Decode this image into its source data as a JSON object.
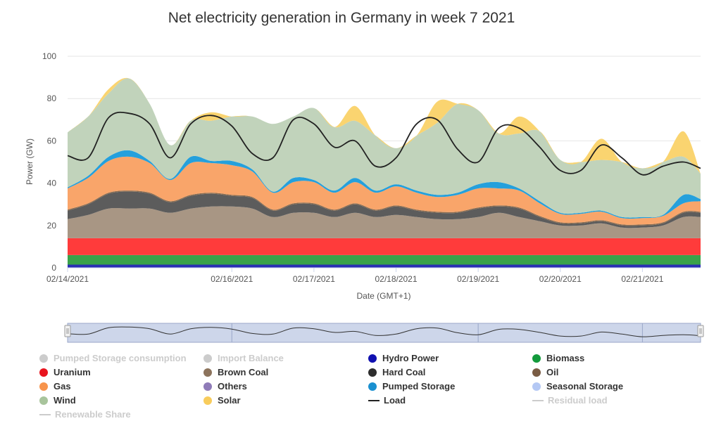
{
  "chart_data": {
    "type": "area",
    "title": "Net electricity generation in Germany in week 7 2021",
    "xlabel": "Date (GMT+1)",
    "ylabel": "Power (GW)",
    "ylim": [
      0,
      100
    ],
    "yticks": [
      0,
      20,
      40,
      60,
      80,
      100
    ],
    "xticks": [
      "02/14/2021",
      "02/16/2021",
      "02/17/2021",
      "02/18/2021",
      "02/19/2021",
      "02/20/2021",
      "02/21/2021"
    ],
    "xtick_hours": [
      0,
      48,
      72,
      96,
      120,
      144,
      168
    ],
    "xrange_hours": [
      0,
      185
    ],
    "x_hours": [
      0,
      6,
      12,
      18,
      24,
      30,
      36,
      42,
      48,
      54,
      60,
      66,
      72,
      78,
      84,
      90,
      96,
      102,
      108,
      114,
      120,
      126,
      132,
      138,
      144,
      150,
      156,
      162,
      168,
      174,
      180,
      185
    ],
    "stack_order": [
      "Hydro Power",
      "Biomass",
      "Uranium",
      "Brown Coal",
      "Hard Coal",
      "Oil",
      "Gas",
      "Pumped Storage",
      "Wind",
      "Solar"
    ],
    "series": [
      {
        "name": "Hydro Power",
        "color": "#2a2fb4",
        "values": [
          1.5,
          1.5,
          1.5,
          1.5,
          1.5,
          1.5,
          1.5,
          1.5,
          1.5,
          1.5,
          1.5,
          1.5,
          1.5,
          1.5,
          1.5,
          1.5,
          1.5,
          1.5,
          1.5,
          1.5,
          1.5,
          1.5,
          1.5,
          1.5,
          1.5,
          1.5,
          1.5,
          1.5,
          1.5,
          1.5,
          1.5,
          1.5
        ]
      },
      {
        "name": "Biomass",
        "color": "#3aa24a",
        "values": [
          4.5,
          4.5,
          4.5,
          4.5,
          4.5,
          4.5,
          4.5,
          4.5,
          4.5,
          4.5,
          4.5,
          4.5,
          4.5,
          4.5,
          4.5,
          4.5,
          4.5,
          4.5,
          4.5,
          4.5,
          4.5,
          4.5,
          4.5,
          4.5,
          4.5,
          4.5,
          4.5,
          4.5,
          4.5,
          4.5,
          4.5,
          4.5
        ]
      },
      {
        "name": "Uranium",
        "color": "#ff3b3b",
        "values": [
          8,
          8,
          8,
          8,
          8,
          8,
          8,
          8,
          8,
          8,
          8,
          8,
          8,
          8,
          8,
          8,
          8,
          8,
          8,
          8,
          8,
          8,
          8,
          8,
          8,
          8,
          8,
          8,
          8,
          8,
          8,
          8
        ]
      },
      {
        "name": "Brown Coal",
        "color": "#a89684",
        "values": [
          9,
          11,
          14,
          14,
          14,
          12,
          14,
          15,
          15,
          14,
          10,
          12,
          12,
          10,
          12,
          10,
          11,
          10,
          9,
          9,
          10,
          12,
          10,
          8,
          6,
          6,
          7,
          5,
          5,
          6,
          10,
          10
        ]
      },
      {
        "name": "Hard Coal",
        "color": "#5c5c5c",
        "values": [
          4,
          5,
          7,
          8,
          7,
          5,
          6,
          6,
          5,
          5,
          3,
          4,
          4,
          3,
          4,
          3,
          4,
          3,
          3,
          3,
          4,
          3,
          4,
          2,
          1,
          1,
          1,
          1,
          1,
          1,
          2,
          2
        ]
      },
      {
        "name": "Oil",
        "color": "#8a6d52",
        "values": [
          0.5,
          0.5,
          0.5,
          0.5,
          0.5,
          0.5,
          0.5,
          0.5,
          0.5,
          0.5,
          0.5,
          0.5,
          0.5,
          0.5,
          0.5,
          0.5,
          0.5,
          0.5,
          0.5,
          0.5,
          0.5,
          0.5,
          0.5,
          0.5,
          0.5,
          0.5,
          0.5,
          0.5,
          0.5,
          0.5,
          0.5,
          0.5
        ]
      },
      {
        "name": "Gas",
        "color": "#f9a56a",
        "values": [
          10,
          12,
          15,
          16,
          14,
          10,
          15,
          14,
          14,
          12,
          8,
          10,
          10,
          8,
          10,
          8,
          9,
          8,
          7,
          8,
          9,
          8,
          8,
          6,
          4,
          4,
          4,
          3,
          3,
          3,
          4,
          5
        ]
      },
      {
        "name": "Pumped Storage",
        "color": "#25a0dc",
        "values": [
          0.5,
          1,
          2,
          3,
          1,
          0.5,
          3,
          1,
          2,
          1,
          0.5,
          2,
          1,
          1,
          2,
          1,
          1,
          1,
          1,
          1,
          2,
          3,
          1,
          1,
          0.5,
          0.5,
          0.5,
          0.5,
          0.5,
          0.5,
          4,
          1
        ]
      },
      {
        "name": "Wind",
        "color": "#c1d3bb",
        "values": [
          26,
          28,
          30,
          34,
          27,
          16,
          17,
          19,
          21,
          25,
          32,
          29,
          34,
          30,
          27,
          26,
          17,
          26,
          34,
          42,
          35,
          23,
          26,
          33,
          25,
          24,
          24,
          26,
          23,
          25,
          18,
          12
        ]
      },
      {
        "name": "Solar",
        "color": "#fad470",
        "values": [
          0,
          0,
          2,
          0,
          0,
          0,
          0,
          4,
          0,
          0,
          0,
          0,
          0,
          0,
          7,
          0,
          0,
          0,
          10,
          0,
          0,
          0,
          8,
          0,
          0,
          0,
          10,
          0,
          0,
          0,
          12,
          0
        ]
      },
      {
        "name": "Load",
        "color": "#222222",
        "line": true,
        "values": [
          53,
          52,
          71,
          73,
          68,
          52,
          68,
          72,
          67,
          54,
          52,
          70,
          68,
          57,
          60,
          48,
          52,
          68,
          70,
          56,
          50,
          66,
          66,
          57,
          46,
          46,
          58,
          52,
          44,
          48,
          50,
          47
        ]
      }
    ],
    "legend": {
      "placement": "bottom",
      "items": [
        {
          "label": "Pumped Storage consumption",
          "color": "#cccccc",
          "marker": "dot",
          "visible": false
        },
        {
          "label": "Import Balance",
          "color": "#cccccc",
          "marker": "dot",
          "visible": false
        },
        {
          "label": "Hydro Power",
          "color": "#1010b0",
          "marker": "dot",
          "visible": true
        },
        {
          "label": "Biomass",
          "color": "#139a3c",
          "marker": "dot",
          "visible": true
        },
        {
          "label": "Uranium",
          "color": "#e8141e",
          "marker": "dot",
          "visible": true
        },
        {
          "label": "Brown Coal",
          "color": "#8c735c",
          "marker": "dot",
          "visible": true
        },
        {
          "label": "Hard Coal",
          "color": "#2d2d2d",
          "marker": "dot",
          "visible": true
        },
        {
          "label": "Oil",
          "color": "#7a5c44",
          "marker": "dot",
          "visible": true
        },
        {
          "label": "Gas",
          "color": "#f7944c",
          "marker": "dot",
          "visible": true
        },
        {
          "label": "Others",
          "color": "#8f7bb8",
          "marker": "dot",
          "visible": true
        },
        {
          "label": "Pumped Storage",
          "color": "#1a90d0",
          "marker": "dot",
          "visible": true
        },
        {
          "label": "Seasonal Storage",
          "color": "#b4c8f4",
          "marker": "dot",
          "visible": true
        },
        {
          "label": "Wind",
          "color": "#a8c49c",
          "marker": "dot",
          "visible": true
        },
        {
          "label": "Solar",
          "color": "#f8cc5c",
          "marker": "dot",
          "visible": true
        },
        {
          "label": "Load",
          "color": "#222222",
          "marker": "line",
          "visible": true
        },
        {
          "label": "Residual load",
          "color": "#cccccc",
          "marker": "line",
          "visible": false
        },
        {
          "label": "Renewable Share",
          "color": "#cccccc",
          "marker": "line",
          "visible": false
        }
      ]
    },
    "grid": true
  }
}
